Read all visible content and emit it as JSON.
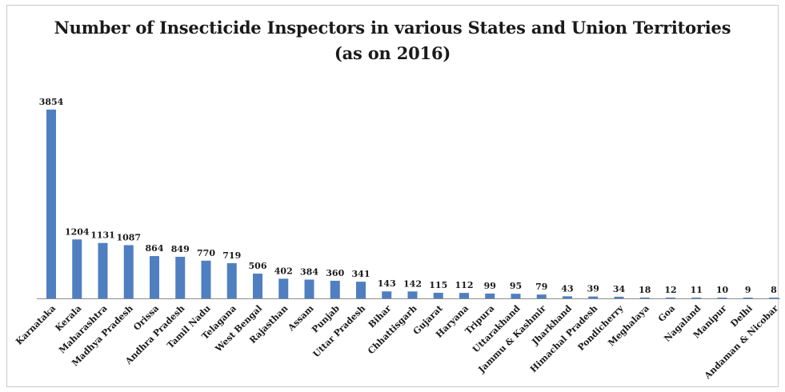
{
  "chart_data": {
    "type": "bar",
    "title": "Number of Insecticide Inspectors in various States and Union Territories",
    "subtitle": "(as on 2016)",
    "xlabel": "",
    "ylabel": "",
    "grid": false,
    "legend": "none",
    "bar_color": "#4f7fc0",
    "categories": [
      "Karnataka",
      "Kerala",
      "Maharashtra",
      "Madhya Pradesh",
      "Orissa",
      "Andhra Pradesh",
      "Tamil Nadu",
      "Telagana",
      "West Bengal",
      "Rajasthan",
      "Assam",
      "Punjab",
      "Uttar Pradesh",
      "Bihar",
      "Chhattisgarh",
      "Gujarat",
      "Haryana",
      "Tripura",
      "Uttarakhand",
      "Jammu & Kashmir",
      "Jharkhand",
      "Himachal Pradesh",
      "Pondicherry",
      "Meghalaya",
      "Goa",
      "Nagaland",
      "Manipur",
      "Delhi",
      "Andaman & Nicobar"
    ],
    "values": [
      3854,
      1204,
      1131,
      1087,
      864,
      849,
      770,
      719,
      506,
      402,
      384,
      360,
      341,
      143,
      142,
      115,
      112,
      99,
      95,
      79,
      43,
      39,
      34,
      18,
      12,
      11,
      10,
      9,
      8
    ],
    "value_labels": [
      "3854",
      "1204",
      "1131",
      "1087",
      "864",
      "849",
      "770",
      "719",
      "506",
      "402",
      "384",
      "360",
      "341",
      "143",
      "142",
      "115",
      "112",
      "99",
      "95",
      "79",
      "43",
      "39",
      "34",
      "18",
      "12",
      "11",
      "10",
      "9",
      "8"
    ],
    "ylim": [
      0,
      3854
    ]
  }
}
